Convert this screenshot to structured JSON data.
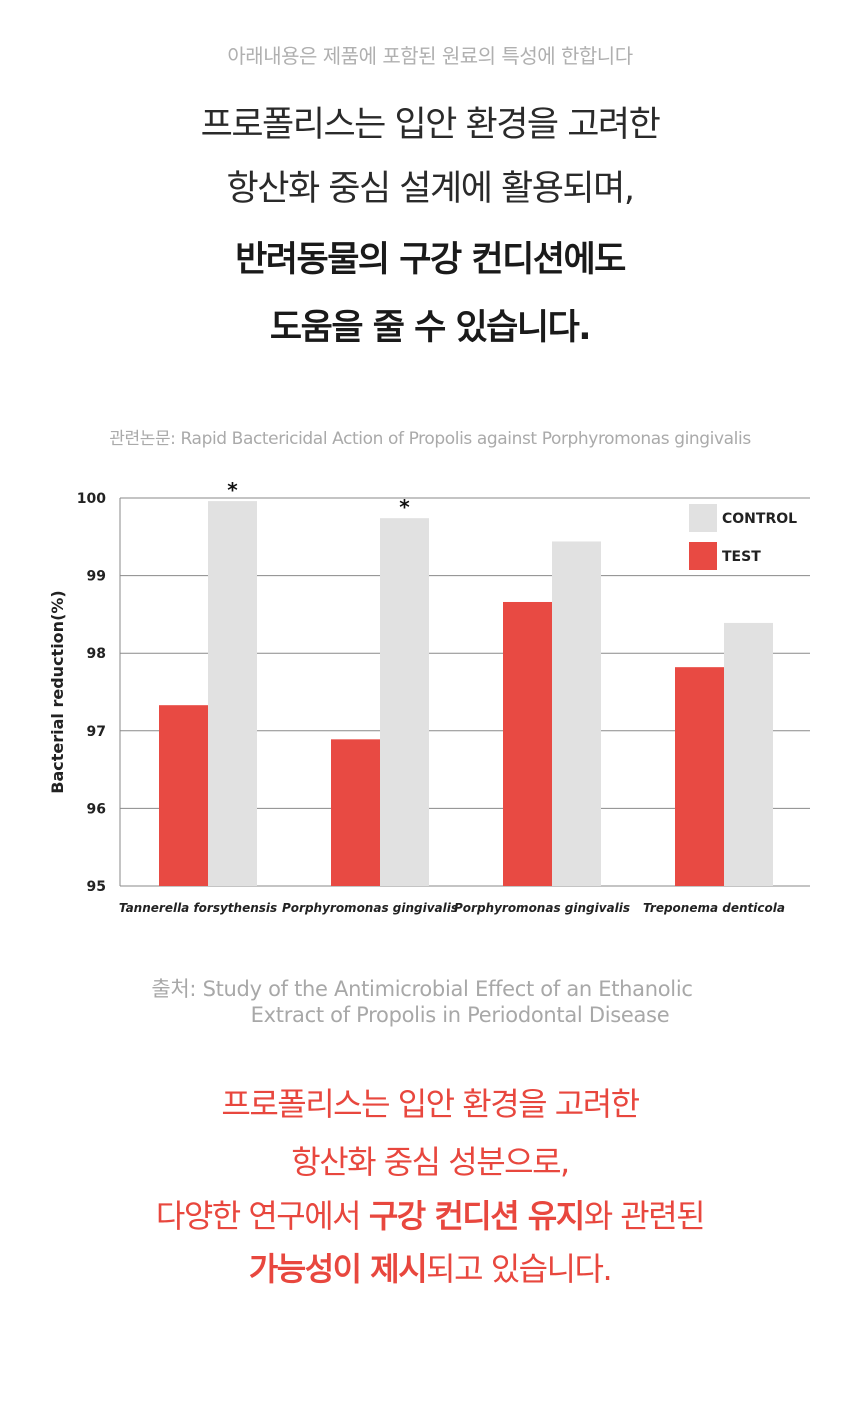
{
  "notice": "아래내용은 제품에 포함된 원료의 특성에 한합니다",
  "headline": {
    "line1": "프로폴리스는 입안 환경을 고려한",
    "line2": "항산화 중심 설계에 활용되며,",
    "line3": "반려동물의 구강 컨디션에도",
    "line4": "도움을 줄 수 있습니다."
  },
  "reference": "관련논문: Rapid Bactericidal Action of Propolis against Porphyromonas gingivalis",
  "chart_data": {
    "type": "bar",
    "ylabel": "Bacterial reduction(%)",
    "xlabel": "",
    "ylim": [
      95,
      100
    ],
    "yticks": [
      "95",
      "96",
      "97",
      "98",
      "99",
      "100"
    ],
    "grid": true,
    "legend_position": "top-right",
    "categories": [
      "Tannerella forsythensis",
      "Porphyromonas gingivalis",
      "Porphyromonas gingivalis",
      "Treponema denticola"
    ],
    "series": [
      {
        "name": "TEST",
        "color": "#e84a43",
        "values": [
          97.33,
          96.89,
          98.66,
          97.82
        ]
      },
      {
        "name": "CONTROL",
        "color": "#e1e1e1",
        "values": [
          99.96,
          99.74,
          99.44,
          98.39
        ]
      }
    ],
    "significance_marks": [
      "*",
      "*",
      "",
      ""
    ]
  },
  "source": {
    "line1": "출처: Study of the Antimicrobial Effect of an Ethanolic",
    "line2": "Extract of Propolis in Periodontal Disease"
  },
  "closing": {
    "line1": "프로폴리스는 입안 환경을 고려한",
    "line2": "항산화 중심 성분으로,",
    "line3_a": "다양한 연구에서 ",
    "line3_b": "구강 컨디션 유지",
    "line3_c": "와 관련된",
    "line4_a": "가능성이 제시",
    "line4_b": "되고 있습니다."
  }
}
